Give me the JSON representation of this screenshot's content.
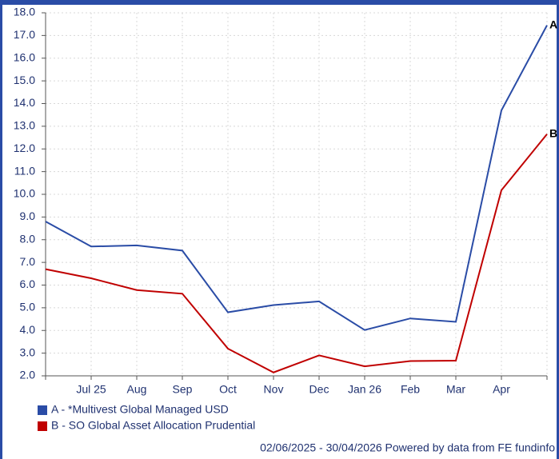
{
  "chart_data": {
    "type": "line",
    "categories": [
      null,
      "Jul 25",
      "Aug",
      "Sep",
      "Oct",
      "Nov",
      "Dec",
      "Jan 26",
      "Feb",
      "Mar",
      "Apr",
      null
    ],
    "series": [
      {
        "name": "A - *Multivest Global Managed USD",
        "tag": "A",
        "color": "#2a4ca6",
        "values": [
          8.8,
          7.7,
          7.75,
          7.52,
          4.8,
          5.12,
          5.28,
          4.02,
          4.53,
          4.38,
          13.7,
          17.45
        ]
      },
      {
        "name": "B - SO Global Asset Allocation Prudential",
        "tag": "B",
        "color": "#c00000",
        "values": [
          6.7,
          6.3,
          5.78,
          5.62,
          3.2,
          2.15,
          2.9,
          2.42,
          2.65,
          2.67,
          10.18,
          12.65
        ]
      }
    ],
    "ylim": [
      2,
      18
    ],
    "yticks": [
      {
        "value": 2,
        "label": "2.0"
      },
      {
        "value": 3,
        "label": "3.0"
      },
      {
        "value": 4,
        "label": "4.0"
      },
      {
        "value": 5,
        "label": "5.0"
      },
      {
        "value": 6,
        "label": "6.0"
      },
      {
        "value": 7,
        "label": "7.0"
      },
      {
        "value": 8,
        "label": "8.0"
      },
      {
        "value": 9,
        "label": "9.0"
      },
      {
        "value": 10,
        "label": "10.0"
      },
      {
        "value": 11,
        "label": "11.0"
      },
      {
        "value": 12,
        "label": "12.0"
      },
      {
        "value": 13,
        "label": "13.0"
      },
      {
        "value": 14,
        "label": "14.0"
      },
      {
        "value": 15,
        "label": "15.0"
      },
      {
        "value": 16,
        "label": "16.0"
      },
      {
        "value": 17,
        "label": "17.0"
      },
      {
        "value": 18,
        "label": "18.0"
      }
    ],
    "grid": true,
    "footer": "02/06/2025 - 30/04/2026 Powered by data from FE fundinfo"
  }
}
